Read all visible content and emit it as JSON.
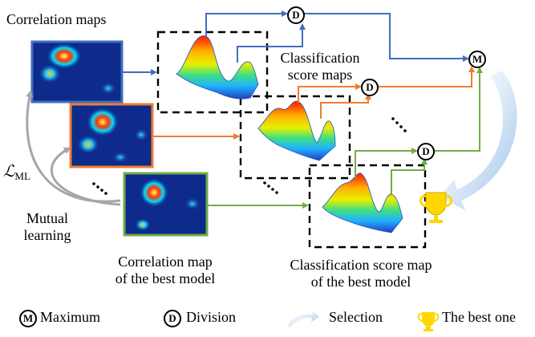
{
  "labels": {
    "correlation_maps": "Correlation maps",
    "classification_score_maps_line1": "Classification",
    "classification_score_maps_line2": "score maps",
    "loss_main": "ℒ",
    "loss_sub": "ML",
    "mutual_learning_line1": "Mutual",
    "mutual_learning_line2": "learning",
    "best_corr_line1": "Correlation map",
    "best_corr_line2": "of the best model",
    "best_cls_line1": "Classification score map",
    "best_cls_line2": "of the best model"
  },
  "operators": {
    "division_letter": "D",
    "maximum_letter": "M"
  },
  "legend": {
    "maximum_symbol": "M",
    "maximum_label": "Maximum",
    "division_symbol": "D",
    "division_label": "Division",
    "selection_label": "Selection",
    "best_label": "The best one"
  },
  "colors": {
    "blue": "#3f6fbf",
    "orange": "#ed7d31",
    "green": "#70ad47",
    "gray_arrow": "#a6a6a6",
    "selection_arrow": "#9dc3e6",
    "trophy": "#ffd700"
  },
  "icons": [
    "maximum-operator-icon",
    "division-operator-icon",
    "selection-arrow-icon",
    "trophy-icon"
  ]
}
